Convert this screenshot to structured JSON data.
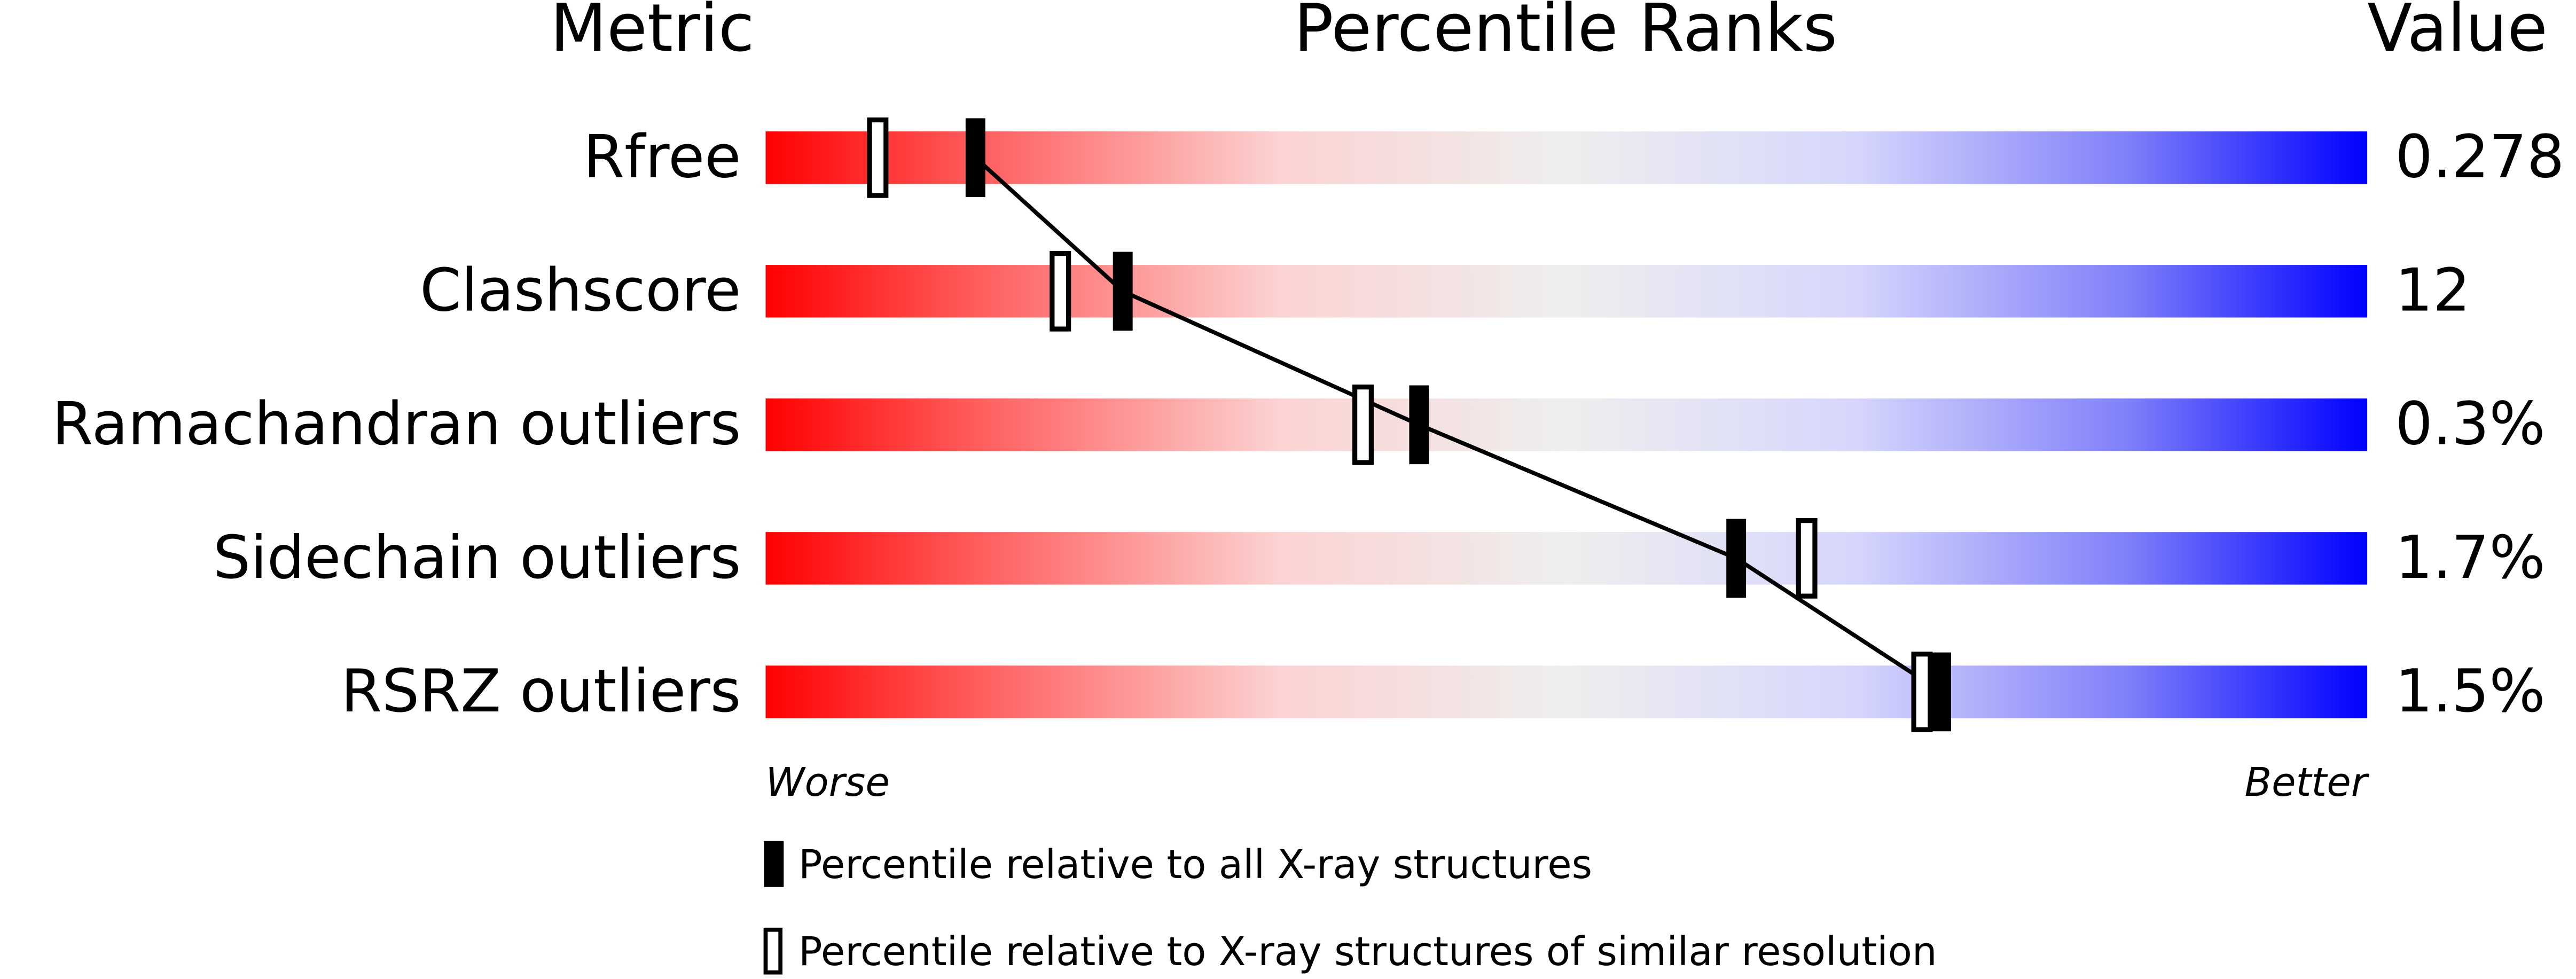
{
  "chart_data": {
    "type": "percentile",
    "headers": [
      "Metric",
      "Percentile Ranks",
      "Value"
    ],
    "categories": [
      "Rfree",
      "Clashscore",
      "Ramachandran outliers",
      "Sidechain outliers",
      "RSRZ outliers"
    ],
    "metric_values": [
      "0.278",
      "12",
      "0.3%",
      "1.7%",
      "1.5%"
    ],
    "series": [
      {
        "name": "Percentile relative to all X-ray structures",
        "color": "#000000",
        "filled": true,
        "values": [
          13.1,
          22.3,
          40.8,
          60.6,
          73.4
        ]
      },
      {
        "name": "Percentile relative to X-ray structures of similar resolution",
        "color": "#000000",
        "filled": false,
        "values": [
          7.0,
          18.4,
          37.3,
          65.0,
          72.2
        ]
      }
    ],
    "xlim": [
      0,
      100
    ],
    "x_start_label": "Worse",
    "x_end_label": "Better"
  }
}
